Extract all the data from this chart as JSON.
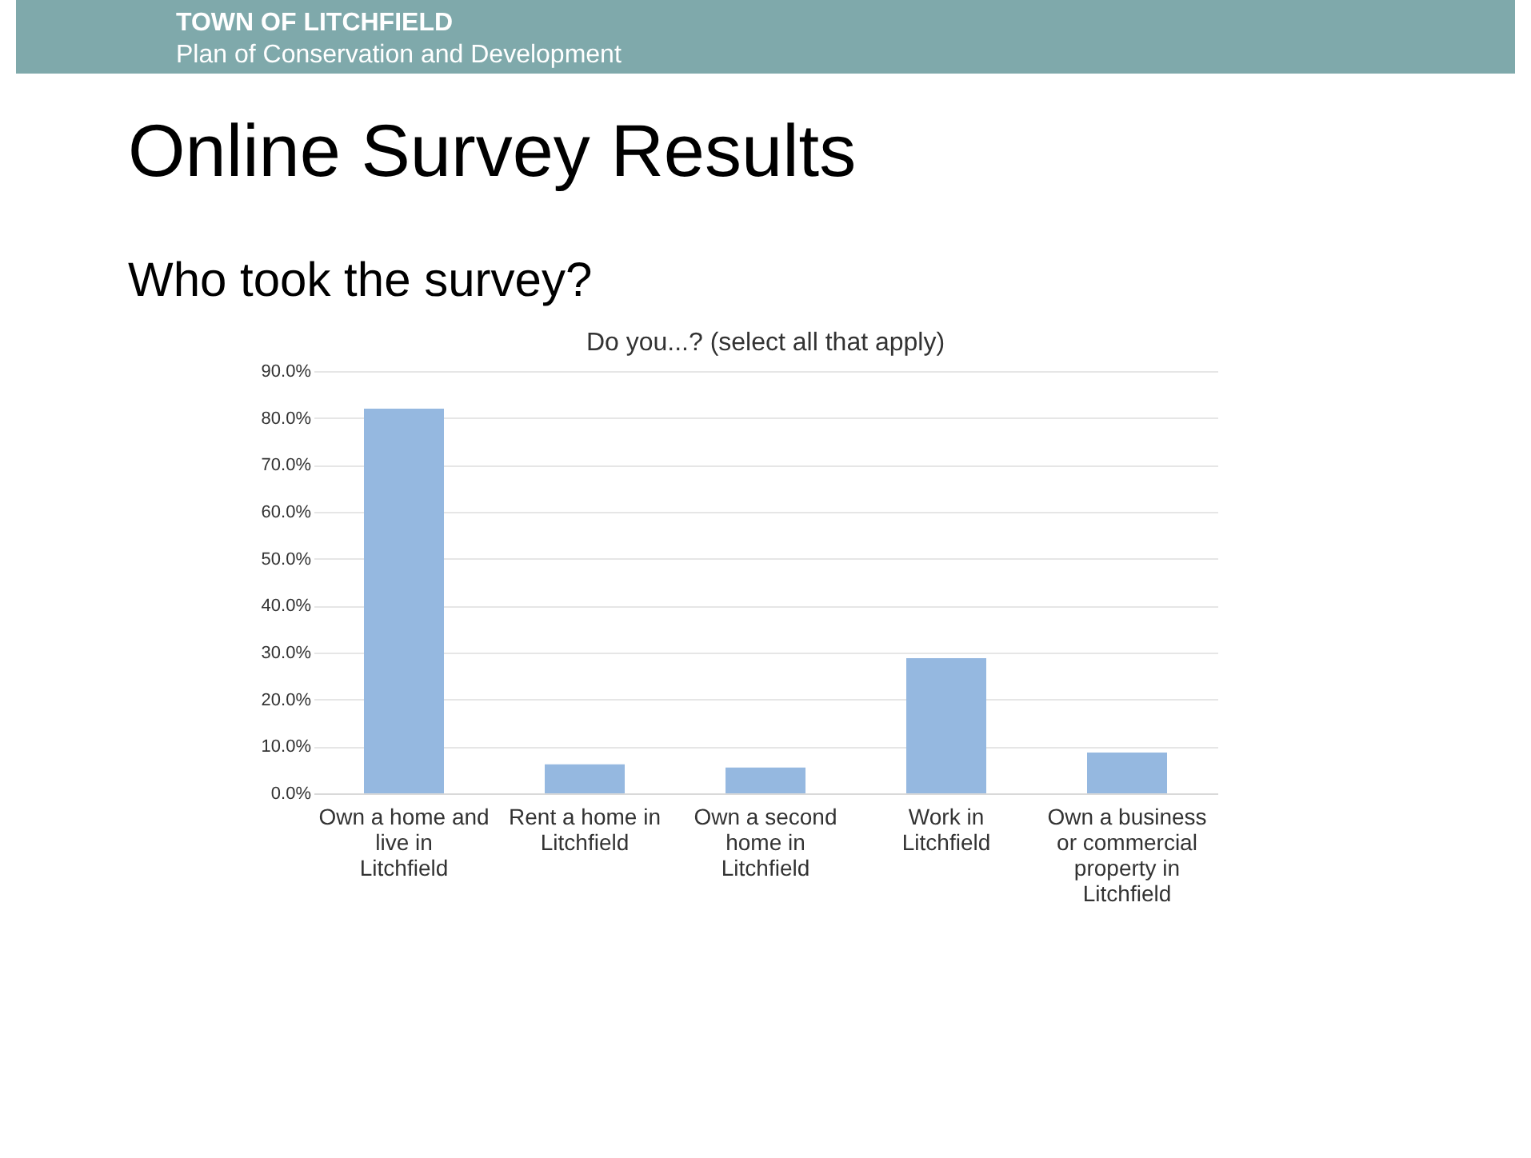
{
  "chart_data": {
    "type": "bar",
    "title": "Online Survey Results",
    "subtitle": "Who took the survey?",
    "annotations": [
      "TOWN OF LITCHFIELD",
      "Plan of Conservation and Development",
      "Do you...? (select all that apply)"
    ],
    "categories": [
      "Own a home and live in Litchfield",
      "Rent a home in Litchfield",
      "Own a second home in Litchfield",
      "Work in Litchfield",
      "Own a business or commercial property in Litchfield"
    ],
    "values": [
      82.0,
      6.2,
      5.5,
      28.8,
      8.7
    ],
    "color": "#95b8e0",
    "ylim": [
      0,
      90
    ],
    "yticks": [
      {
        "value": 0,
        "label": "0.0%"
      },
      {
        "value": 10,
        "label": "10.0%"
      },
      {
        "value": 20,
        "label": "20.0%"
      },
      {
        "value": 30,
        "label": "30.0%"
      },
      {
        "value": 40,
        "label": "40.0%"
      },
      {
        "value": 50,
        "label": "50.0%"
      },
      {
        "value": 60,
        "label": "60.0%"
      },
      {
        "value": 70,
        "label": "70.0%"
      },
      {
        "value": 80,
        "label": "80.0%"
      },
      {
        "value": 90,
        "label": "90.0%"
      }
    ],
    "grid": "y"
  }
}
